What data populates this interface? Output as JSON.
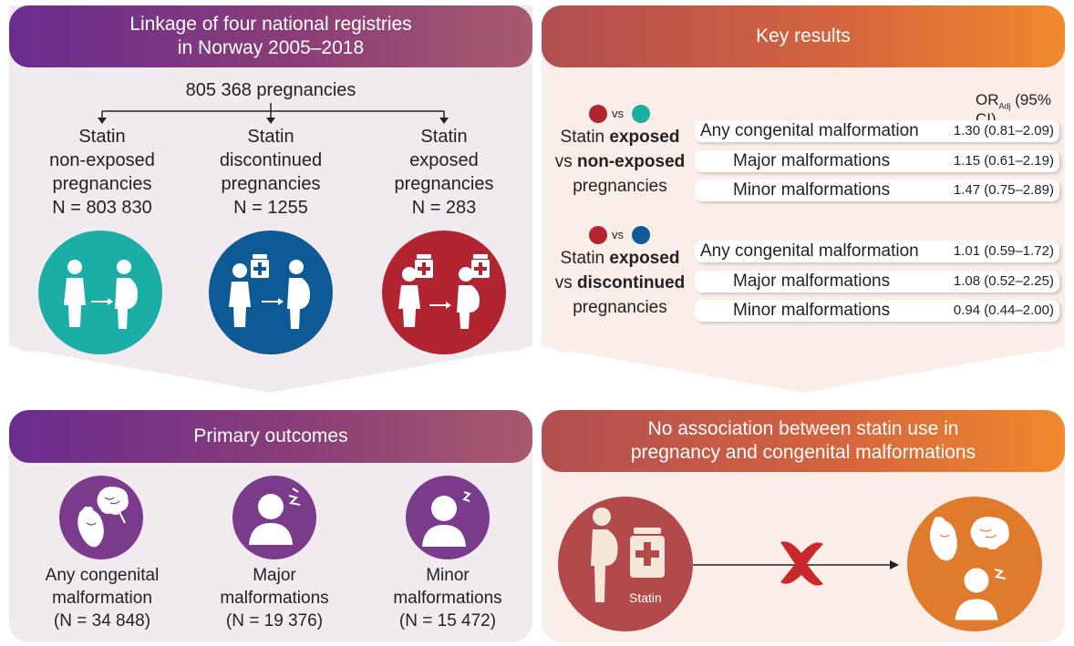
{
  "linkage": {
    "title_line1": "Linkage of four national registries",
    "title_line2": "in Norway 2005–2018",
    "total": "805 368 pregnancies",
    "groups": [
      {
        "l1": "Statin",
        "l2": "non-exposed",
        "l3": "pregnancies",
        "n": "N = 803 830",
        "color": "#1aaea6"
      },
      {
        "l1": "Statin",
        "l2": "discontinued",
        "l3": "pregnancies",
        "n": "N = 1255",
        "color": "#0d5a96"
      },
      {
        "l1": "Statin",
        "l2": "exposed",
        "l3": "pregnancies",
        "n": "N = 283",
        "color": "#b02530"
      }
    ]
  },
  "key_results": {
    "title": "Key results",
    "or_label": "OR",
    "or_sub": "Adj",
    "ci_label": "(95% CI)",
    "vs": "vs",
    "comparisons": [
      {
        "line1_a": "Statin ",
        "line1_b": "exposed",
        "line2_a": "vs ",
        "line2_b": "non-exposed",
        "line3": "pregnancies",
        "dot1": "#b02530",
        "dot2": "#1aaea6",
        "rows": [
          {
            "name": "Any congenital malformation",
            "value": "1.30 (0.81–2.09)"
          },
          {
            "name": "Major malformations",
            "value": "1.15 (0.61–2.19)"
          },
          {
            "name": "Minor malformations",
            "value": "1.47 (0.75–2.89)"
          }
        ]
      },
      {
        "line1_a": "Statin ",
        "line1_b": "exposed",
        "line2_a": "vs ",
        "line2_b": "discontinued",
        "line3": "pregnancies",
        "dot1": "#b02530",
        "dot2": "#0d5a96",
        "rows": [
          {
            "name": "Any congenital malformation",
            "value": "1.01 (0.59–1.72)"
          },
          {
            "name": "Major malformations",
            "value": "1.08 (0.52–2.25)"
          },
          {
            "name": "Minor malformations",
            "value": "0.94 (0.44–2.00)"
          }
        ]
      }
    ]
  },
  "primary": {
    "title": "Primary outcomes",
    "outcomes": [
      {
        "l1": "Any congenital",
        "l2": "malformation",
        "n": "(N = 34 848)"
      },
      {
        "l1": "Major",
        "l2": "malformations",
        "n": "(N = 19 376)"
      },
      {
        "l1": "Minor",
        "l2": "malformations",
        "n": "(N = 15 472)"
      }
    ]
  },
  "conclusion": {
    "title_line1": "No association between statin use in",
    "title_line2": "pregnancy and congenital malformations",
    "statin_label": "Statin"
  }
}
